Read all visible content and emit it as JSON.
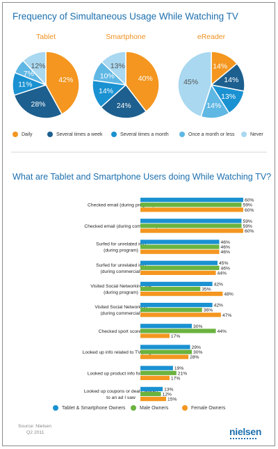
{
  "top_title": "Frequency of Simultaneous Usage While Watching TV",
  "bottom_title": "What are Tablet and Smartphone Users doing While Watching TV?",
  "pie_legend": [
    {
      "label": "Daily",
      "color": "#f4961f"
    },
    {
      "label": "Several times a week",
      "color": "#1d5f8e"
    },
    {
      "label": "Several times a month",
      "color": "#1a91d1"
    },
    {
      "label": "Once a month or less",
      "color": "#5fb7e4"
    },
    {
      "label": "Never",
      "color": "#a9d8f0"
    }
  ],
  "bar_legend": [
    {
      "label": "Tablet & Smartphone Owners",
      "color": "#1a91d1"
    },
    {
      "label": "Male Owners",
      "color": "#6bb33f"
    },
    {
      "label": "Female Owners",
      "color": "#f4961f"
    }
  ],
  "source": {
    "line1": "Source: Nielsen",
    "line2": "Q2 2011"
  },
  "logo": "nielsen",
  "chart_data": [
    {
      "type": "pie",
      "title": "Tablet",
      "categories": [
        "Daily",
        "Several times a week",
        "Several times a month",
        "Once a month or less",
        "Never"
      ],
      "values": [
        42,
        28,
        11,
        7,
        12
      ],
      "labels": [
        "42%",
        "28%",
        "11%",
        "7%",
        "12%"
      ]
    },
    {
      "type": "pie",
      "title": "Smartphone",
      "categories": [
        "Daily",
        "Several times a week",
        "Several times a month",
        "Once a month or less",
        "Never"
      ],
      "values": [
        40,
        24,
        14,
        10,
        13
      ],
      "labels": [
        "40%",
        "24%",
        "14%",
        "10%",
        "13%"
      ]
    },
    {
      "type": "pie",
      "title": "eReader",
      "categories": [
        "Daily",
        "Several times a week",
        "Several times a month",
        "Once a month or less",
        "Never"
      ],
      "values": [
        14,
        14,
        13,
        14,
        45
      ],
      "labels": [
        "14%",
        "14%",
        "13%",
        "14%",
        "45%"
      ]
    },
    {
      "type": "bar",
      "orientation": "horizontal",
      "title": "What are Tablet and Smartphone Users doing While Watching TV?",
      "categories": [
        [
          "Checked email (during program)"
        ],
        [
          "Checked email (during commercial)"
        ],
        [
          "Surfed for unrelated info",
          "(during program)"
        ],
        [
          "Surfed for unrelated info",
          "(during commercial)"
        ],
        [
          "Visited Social Networking site",
          "(during program)"
        ],
        [
          "Visited Social Networking",
          "(during commercial)"
        ],
        [
          "Checked sport scores"
        ],
        [
          "Looked up info related to TV program"
        ],
        [
          "Looked up product info for an ad"
        ],
        [
          "Looked up coupons or deals related",
          "to an ad I saw"
        ]
      ],
      "series": [
        {
          "name": "Tablet & Smartphone Owners",
          "values": [
            60,
            59,
            46,
            45,
            42,
            42,
            30,
            29,
            19,
            13
          ]
        },
        {
          "name": "Male Owners",
          "values": [
            59,
            59,
            46,
            46,
            35,
            36,
            44,
            30,
            21,
            12
          ]
        },
        {
          "name": "Female Owners",
          "values": [
            60,
            60,
            46,
            44,
            48,
            47,
            17,
            28,
            17,
            15
          ]
        }
      ],
      "value_suffix": "%",
      "xlim": [
        0,
        60
      ],
      "grid": false
    }
  ]
}
